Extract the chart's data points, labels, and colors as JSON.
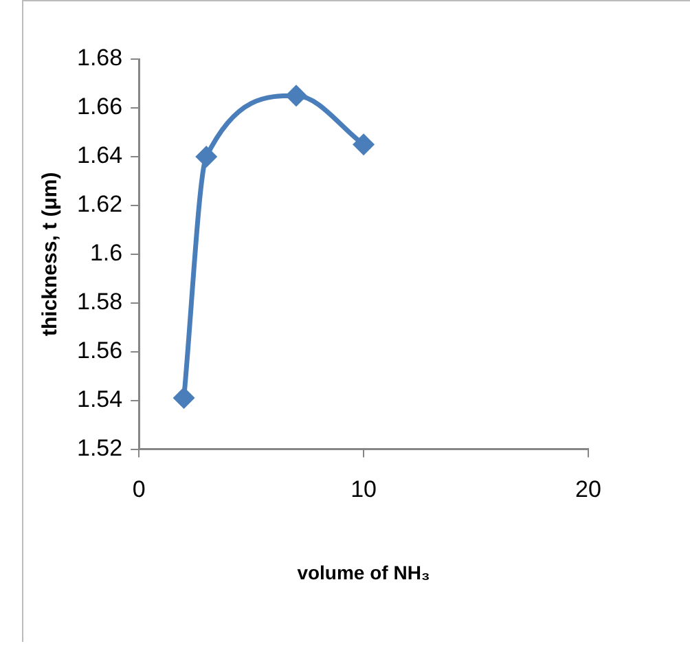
{
  "chart_data": {
    "type": "line",
    "xlabel": "volume of NH₃",
    "ylabel": "thickness, t (μm)",
    "series": [
      {
        "color": "#4a7ebb",
        "x": [
          2,
          3,
          7,
          10
        ],
        "values": [
          1.541,
          1.64,
          1.665,
          1.645
        ]
      }
    ],
    "xlim": [
      0,
      20
    ],
    "xticks": [
      0,
      10,
      20
    ],
    "ylim": [
      1.52,
      1.68
    ],
    "yticks": [
      1.52,
      1.54,
      1.56,
      1.58,
      1.6,
      1.62,
      1.64,
      1.66,
      1.68
    ],
    "grid": false,
    "legend": false,
    "marker": "diamond",
    "line_style": "solid"
  }
}
